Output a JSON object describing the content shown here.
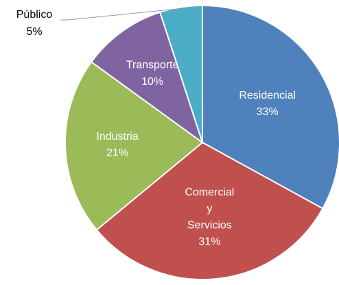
{
  "chart_data": {
    "type": "pie",
    "categories": [
      "Residencial",
      "Comercial y Servicios",
      "Industria",
      "Transporte",
      "Público"
    ],
    "values": [
      33,
      31,
      21,
      10,
      5
    ],
    "value_labels": [
      "33%",
      "31%",
      "21%",
      "10%",
      "5%"
    ],
    "colors": [
      "#4f81bd",
      "#c0504d",
      "#9bbb59",
      "#8064a2",
      "#4bacc6"
    ]
  }
}
